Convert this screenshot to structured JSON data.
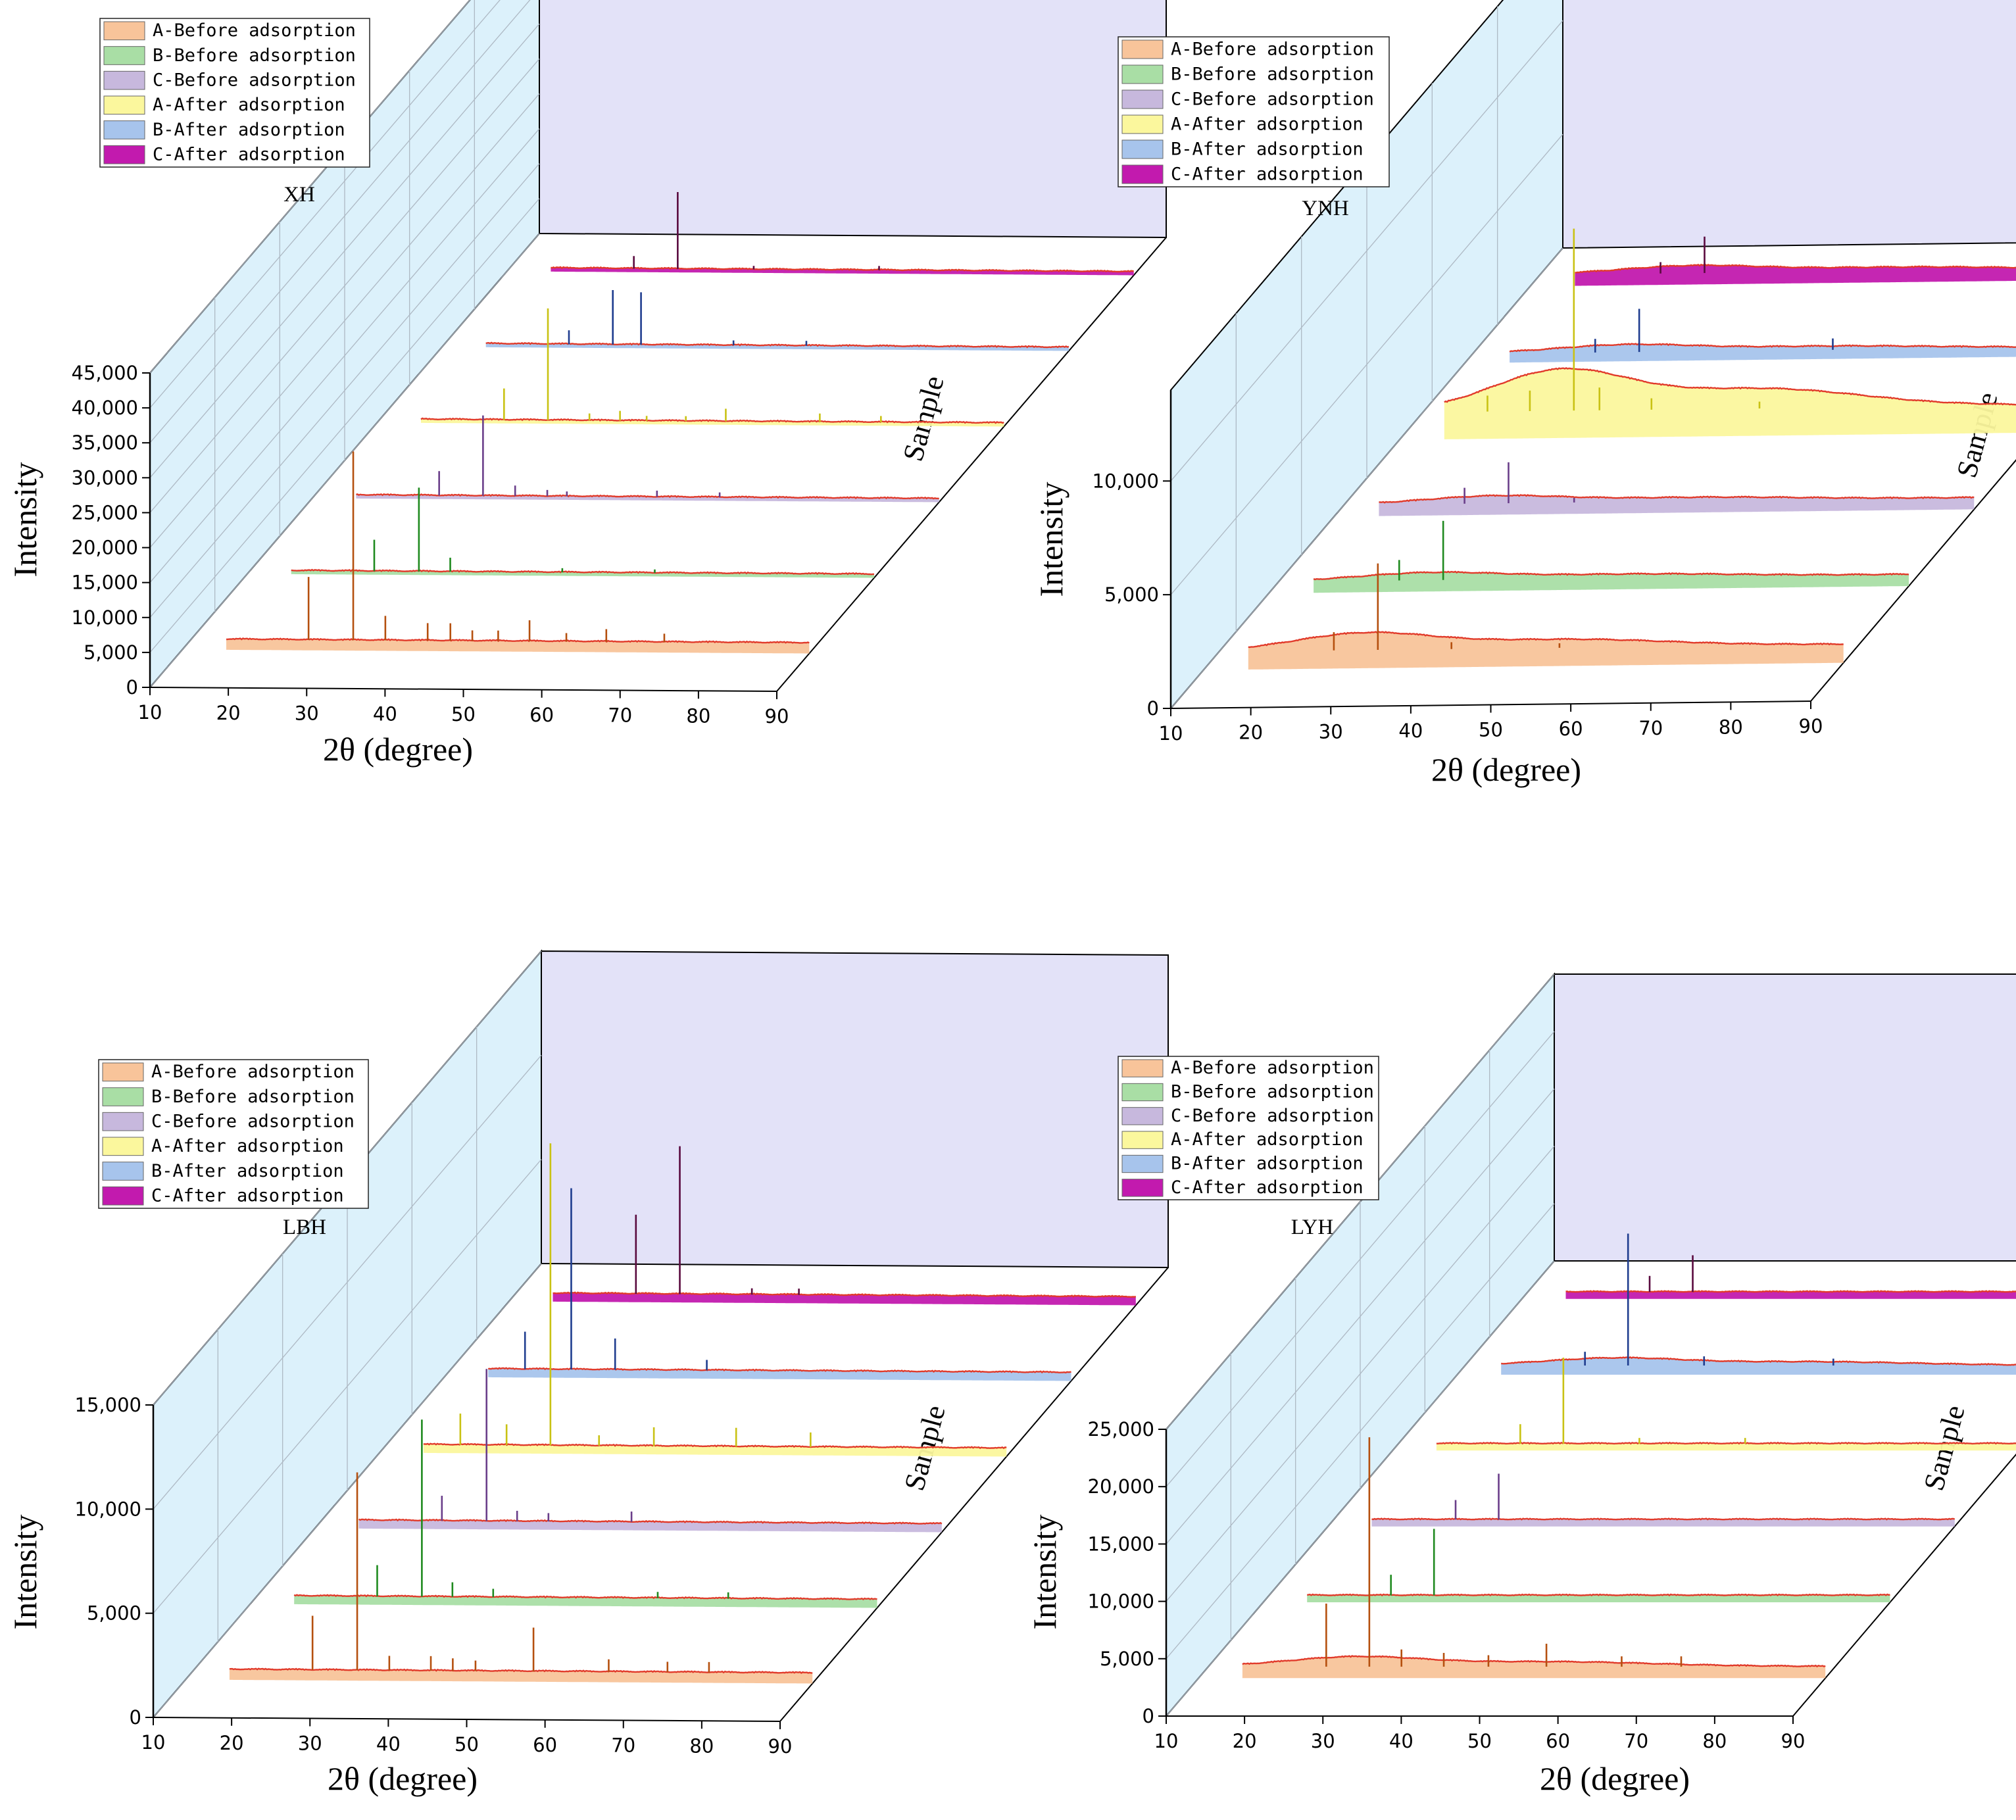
{
  "chart_data": [
    {
      "type": "waterfall-line",
      "title": "XH",
      "xlabel": "2θ (degree)",
      "ylabel": "Intensity",
      "zlabel": "Sample",
      "xlim": [
        10,
        90
      ],
      "ylim": [
        0,
        45000
      ],
      "x_ticks": [
        "10",
        "20",
        "30",
        "40",
        "50",
        "60",
        "70",
        "80",
        "90"
      ],
      "y_ticks": [
        "0",
        "5,000",
        "10,000",
        "15,000",
        "20,000",
        "25,000",
        "30,000",
        "35,000",
        "40,000",
        "45,000"
      ],
      "legend": [
        "A-Before adsorption",
        "B-Before adsorption",
        "C-Before adsorption",
        "A-After adsorption",
        "B-After adsorption",
        "C-After adsorption"
      ],
      "series": [
        {
          "name": "A-Before adsorption",
          "baseline": 1500,
          "hump": 0,
          "peaks": [
            [
              26.1,
              9000
            ],
            [
              31.8,
              27000
            ],
            [
              35.9,
              3500
            ],
            [
              41.3,
              2500
            ],
            [
              44.2,
              2500
            ],
            [
              47.0,
              1500
            ],
            [
              50.3,
              1500
            ],
            [
              54.3,
              3000
            ],
            [
              59.0,
              1200
            ],
            [
              64.1,
              1800
            ],
            [
              71.5,
              1200
            ]
          ]
        },
        {
          "name": "B-Before adsorption",
          "baseline": 500,
          "hump": 0,
          "peaks": [
            [
              26.2,
              4500
            ],
            [
              31.9,
              12000
            ],
            [
              35.9,
              2000
            ],
            [
              50.2,
              600
            ],
            [
              62.0,
              500
            ]
          ]
        },
        {
          "name": "C-Before adsorption",
          "baseline": 500,
          "hump": 0,
          "peaks": [
            [
              26.2,
              3500
            ],
            [
              31.8,
              11500
            ],
            [
              35.9,
              1500
            ],
            [
              40.0,
              900
            ],
            [
              42.5,
              700
            ],
            [
              54.0,
              900
            ],
            [
              62.0,
              700
            ]
          ]
        },
        {
          "name": "A-After adsorption",
          "baseline": 500,
          "hump": 0,
          "peaks": [
            [
              26.2,
              4500
            ],
            [
              31.8,
              16000
            ],
            [
              37.1,
              1000
            ],
            [
              41.0,
              1400
            ],
            [
              44.4,
              700
            ],
            [
              49.4,
              700
            ],
            [
              54.5,
              1800
            ],
            [
              66.5,
              1200
            ],
            [
              74.3,
              900
            ]
          ]
        },
        {
          "name": "B-After adsorption",
          "baseline": 500,
          "hump": 0,
          "peaks": [
            [
              26.2,
              2000
            ],
            [
              31.8,
              7800
            ],
            [
              35.4,
              7500
            ],
            [
              47.2,
              700
            ],
            [
              56.5,
              700
            ]
          ]
        },
        {
          "name": "C-After adsorption",
          "baseline": 500,
          "hump": 0,
          "peaks": [
            [
              26.2,
              1800
            ],
            [
              31.8,
              11000
            ],
            [
              41.5,
              500
            ],
            [
              57.5,
              600
            ]
          ]
        }
      ]
    },
    {
      "type": "waterfall-line",
      "title": "YNH",
      "xlabel": "2θ (degree)",
      "ylabel": "Intensity",
      "zlabel": "Sample",
      "xlim": [
        10,
        90
      ],
      "ylim": [
        0,
        14000
      ],
      "x_ticks": [
        "10",
        "20",
        "30",
        "40",
        "50",
        "60",
        "70",
        "80",
        "90"
      ],
      "y_ticks": [
        "0",
        "5,000",
        "10,000"
      ],
      "legend": [
        "A-Before adsorption",
        "B-Before adsorption",
        "C-Before adsorption",
        "A-After adsorption",
        "B-After adsorption",
        "C-After adsorption"
      ],
      "series": [
        {
          "name": "A-Before adsorption",
          "baseline": 800,
          "hump": 700,
          "peaks": [
            [
              26.3,
              800
            ],
            [
              31.8,
              3800
            ],
            [
              41.0,
              300
            ],
            [
              54.5,
              200
            ]
          ]
        },
        {
          "name": "B-Before adsorption",
          "baseline": 500,
          "hump": 300,
          "peaks": [
            [
              26.3,
              900
            ],
            [
              31.8,
              2600
            ]
          ]
        },
        {
          "name": "C-Before adsorption",
          "baseline": 500,
          "hump": 300,
          "peaks": [
            [
              26.3,
              700
            ],
            [
              31.8,
              1800
            ],
            [
              40.0,
              200
            ]
          ]
        },
        {
          "name": "A-After adsorption",
          "baseline": 1200,
          "hump": 1700,
          "peaks": [
            [
              21.0,
              700
            ],
            [
              26.3,
              900
            ],
            [
              31.8,
              8000
            ],
            [
              35.0,
              1000
            ],
            [
              41.5,
              500
            ],
            [
              55.0,
              300
            ]
          ]
        },
        {
          "name": "B-After adsorption",
          "baseline": 400,
          "hump": 300,
          "peaks": [
            [
              26.3,
              600
            ],
            [
              31.8,
              1900
            ],
            [
              56.0,
              500
            ]
          ]
        },
        {
          "name": "C-After adsorption",
          "baseline": 500,
          "hump": 300,
          "peaks": [
            [
              26.3,
              500
            ],
            [
              31.8,
              1600
            ]
          ]
        }
      ]
    },
    {
      "type": "waterfall-line",
      "title": "LBH",
      "xlabel": "2θ (degree)",
      "ylabel": "Intensity",
      "zlabel": "Sample",
      "xlim": [
        10,
        90
      ],
      "ylim": [
        0,
        15000
      ],
      "x_ticks": [
        "10",
        "20",
        "30",
        "40",
        "50",
        "60",
        "70",
        "80",
        "90"
      ],
      "y_ticks": [
        "0",
        "5,000",
        "10,000",
        "15,000"
      ],
      "legend": [
        "A-Before adsorption",
        "B-Before adsorption",
        "C-Before adsorption",
        "A-After adsorption",
        "B-After adsorption",
        "C-After adsorption"
      ],
      "series": [
        {
          "name": "A-Before adsorption",
          "baseline": 500,
          "hump": 0,
          "peaks": [
            [
              26.2,
              2600
            ],
            [
              31.9,
              9500
            ],
            [
              36.0,
              700
            ],
            [
              41.3,
              700
            ],
            [
              44.1,
              600
            ],
            [
              47.0,
              500
            ],
            [
              54.4,
              2100
            ],
            [
              64.0,
              600
            ],
            [
              71.5,
              500
            ],
            [
              76.8,
              500
            ]
          ]
        },
        {
          "name": "B-Before adsorption",
          "baseline": 400,
          "hump": 0,
          "peaks": [
            [
              26.2,
              1500
            ],
            [
              31.9,
              8500
            ],
            [
              35.8,
              700
            ],
            [
              41.0,
              400
            ],
            [
              62.0,
              300
            ],
            [
              71.0,
              300
            ]
          ]
        },
        {
          "name": "C-Before adsorption",
          "baseline": 400,
          "hump": 0,
          "peaks": [
            [
              26.2,
              1200
            ],
            [
              31.9,
              7300
            ],
            [
              35.8,
              500
            ],
            [
              39.8,
              400
            ],
            [
              50.4,
              500
            ]
          ]
        },
        {
          "name": "A-After adsorption",
          "baseline": 400,
          "hump": 0,
          "peaks": [
            [
              20.3,
              1500
            ],
            [
              26.2,
              1000
            ],
            [
              31.8,
              14500
            ],
            [
              38.0,
              500
            ],
            [
              45.0,
              900
            ],
            [
              55.5,
              900
            ],
            [
              65.0,
              700
            ]
          ]
        },
        {
          "name": "B-After adsorption",
          "baseline": 400,
          "hump": 0,
          "peaks": [
            [
              20.3,
              1800
            ],
            [
              26.2,
              8700
            ],
            [
              31.8,
              1500
            ],
            [
              43.5,
              500
            ]
          ]
        },
        {
          "name": "C-After adsorption",
          "baseline": 400,
          "hump": 0,
          "peaks": [
            [
              26.2,
              3800
            ],
            [
              31.8,
              7100
            ],
            [
              41.0,
              300
            ],
            [
              47.0,
              300
            ]
          ]
        }
      ]
    },
    {
      "type": "waterfall-line",
      "title": "LYH",
      "xlabel": "2θ (degree)",
      "ylabel": "Intensity",
      "zlabel": "Sample",
      "xlim": [
        10,
        90
      ],
      "ylim": [
        0,
        25000
      ],
      "x_ticks": [
        "10",
        "20",
        "30",
        "40",
        "50",
        "60",
        "70",
        "80",
        "90"
      ],
      "y_ticks": [
        "0",
        "5,000",
        "10,000",
        "15,000",
        "20,000",
        "25,000"
      ],
      "legend": [
        "A-Before adsorption",
        "B-Before adsorption",
        "C-Before adsorption",
        "A-After adsorption",
        "B-After adsorption",
        "C-After adsorption"
      ],
      "series": [
        {
          "name": "A-Before adsorption",
          "baseline": 1000,
          "hump": 800,
          "peaks": [
            [
              26.3,
              5500
            ],
            [
              31.8,
              20000
            ],
            [
              35.9,
              1500
            ],
            [
              41.3,
              1200
            ],
            [
              47.0,
              1000
            ],
            [
              54.4,
              2000
            ],
            [
              64.0,
              900
            ],
            [
              71.6,
              900
            ]
          ]
        },
        {
          "name": "B-Before adsorption",
          "baseline": 600,
          "hump": 0,
          "peaks": [
            [
              26.3,
              1800
            ],
            [
              31.8,
              5800
            ]
          ]
        },
        {
          "name": "C-Before adsorption",
          "baseline": 600,
          "hump": 0,
          "peaks": [
            [
              26.3,
              1700
            ],
            [
              31.8,
              4000
            ]
          ]
        },
        {
          "name": "A-After adsorption",
          "baseline": 600,
          "hump": 0,
          "peaks": [
            [
              26.3,
              1700
            ],
            [
              31.8,
              7500
            ],
            [
              41.5,
              500
            ],
            [
              55.0,
              500
            ]
          ]
        },
        {
          "name": "B-After adsorption",
          "baseline": 800,
          "hump": 600,
          "peaks": [
            [
              26.3,
              1200
            ],
            [
              31.8,
              11500
            ],
            [
              41.5,
              800
            ],
            [
              58.0,
              600
            ]
          ]
        },
        {
          "name": "C-After adsorption",
          "baseline": 600,
          "hump": 0,
          "peaks": [
            [
              26.3,
              1400
            ],
            [
              31.8,
              3200
            ]
          ]
        }
      ]
    }
  ],
  "colors": {
    "fills": [
      "#f8c49a",
      "#a9dea5",
      "#c7b8dd",
      "#fbf79d",
      "#a7c4ec",
      "#c21aae"
    ],
    "peak_lines": [
      "#b5500f",
      "#1f8a1f",
      "#6a3e8a",
      "#c9c214",
      "#1f3d8f",
      "#5a0a3f"
    ],
    "trace": "#e13b2b",
    "side_wall": "#dcf1fb",
    "back_wall": "#e3e2f8"
  }
}
